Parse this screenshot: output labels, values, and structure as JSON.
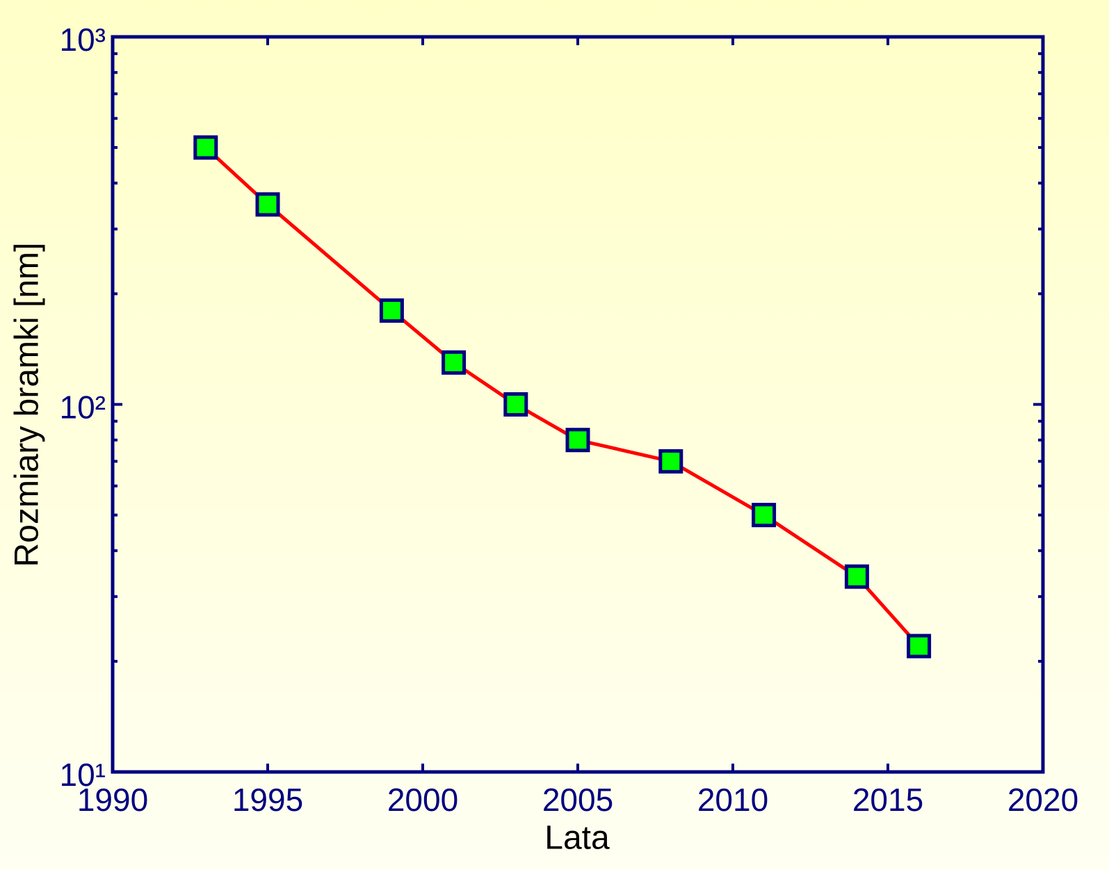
{
  "chart_data": {
    "type": "line",
    "x_label": "Lata",
    "y_label": "Rozmiary bramki [nm]",
    "x": [
      1993,
      1995,
      1999,
      2001,
      2003,
      2005,
      2008,
      2011,
      2014,
      2016
    ],
    "series": [
      {
        "color": "#ff0000",
        "marker_color": "#00ff00",
        "marker_edge": "#000080",
        "values": [
          500,
          350,
          180,
          130,
          100,
          80,
          70,
          50,
          34,
          22
        ]
      }
    ],
    "xlim": [
      1990,
      2020
    ],
    "xticks": [
      1990,
      1995,
      2000,
      2005,
      2010,
      2015,
      2020
    ],
    "ylim": [
      10,
      1000
    ],
    "y_log": true,
    "yticks": [
      {
        "value": 10,
        "label": "10¹"
      },
      {
        "value": 100,
        "label": "10²"
      },
      {
        "value": 1000,
        "label": "10³"
      }
    ],
    "yminorticks": [
      20,
      30,
      40,
      50,
      60,
      70,
      80,
      90,
      200,
      300,
      400,
      500,
      600,
      700,
      800,
      900
    ],
    "axis_color": "#000080"
  }
}
